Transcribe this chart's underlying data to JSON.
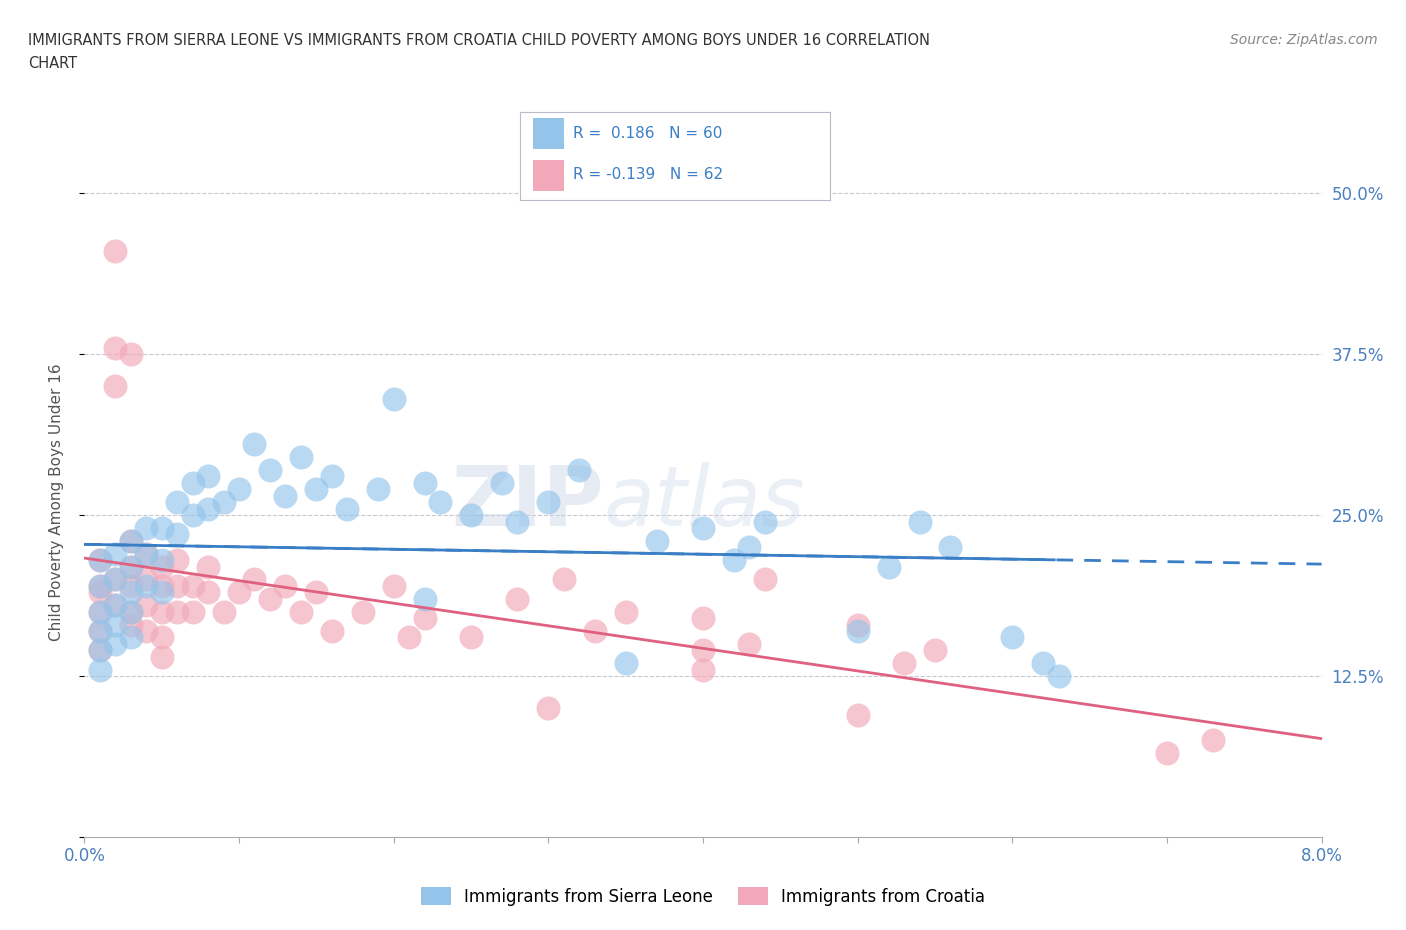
{
  "title_line1": "IMMIGRANTS FROM SIERRA LEONE VS IMMIGRANTS FROM CROATIA CHILD POVERTY AMONG BOYS UNDER 16 CORRELATION",
  "title_line2": "CHART",
  "source_text": "Source: ZipAtlas.com",
  "ylabel": "Child Poverty Among Boys Under 16",
  "xlim": [
    0.0,
    0.08
  ],
  "ylim": [
    0.0,
    0.52
  ],
  "xticks": [
    0.0,
    0.01,
    0.02,
    0.03,
    0.04,
    0.05,
    0.06,
    0.07,
    0.08
  ],
  "xticklabels_sparse": {
    "0.0": "0.0%",
    "0.08": "8.0%"
  },
  "yticks": [
    0.0,
    0.125,
    0.25,
    0.375,
    0.5
  ],
  "yticklabels": [
    "",
    "12.5%",
    "25.0%",
    "37.5%",
    "50.0%"
  ],
  "legend_R1": "R =  0.186",
  "legend_N1": "N = 60",
  "legend_R2": "R = -0.139",
  "legend_N2": "N = 62",
  "color_sierra": "#94C4EA",
  "color_croatia": "#F2A8B8",
  "trendline_color_sierra": "#3A7EC6",
  "trendline_color_croatia": "#E06080",
  "background_color": "#FFFFFF",
  "grid_color": "#C8C8D0",
  "watermark_zip": "ZIP",
  "watermark_atlas": "atlas",
  "sierra_x": [
    0.001,
    0.001,
    0.001,
    0.001,
    0.001,
    0.001,
    0.002,
    0.002,
    0.002,
    0.002,
    0.002,
    0.003,
    0.003,
    0.003,
    0.003,
    0.003,
    0.004,
    0.004,
    0.004,
    0.005,
    0.005,
    0.005,
    0.006,
    0.006,
    0.007,
    0.007,
    0.008,
    0.008,
    0.009,
    0.01,
    0.011,
    0.012,
    0.013,
    0.014,
    0.015,
    0.016,
    0.017,
    0.019,
    0.02,
    0.022,
    0.023,
    0.025,
    0.027,
    0.028,
    0.03,
    0.032,
    0.035,
    0.037,
    0.04,
    0.042,
    0.043,
    0.044,
    0.05,
    0.052,
    0.054,
    0.056,
    0.06,
    0.062,
    0.063,
    0.022
  ],
  "sierra_y": [
    0.215,
    0.195,
    0.175,
    0.16,
    0.145,
    0.13,
    0.22,
    0.2,
    0.18,
    0.165,
    0.15,
    0.23,
    0.21,
    0.19,
    0.175,
    0.155,
    0.24,
    0.22,
    0.195,
    0.24,
    0.215,
    0.19,
    0.26,
    0.235,
    0.275,
    0.25,
    0.28,
    0.255,
    0.26,
    0.27,
    0.305,
    0.285,
    0.265,
    0.295,
    0.27,
    0.28,
    0.255,
    0.27,
    0.34,
    0.275,
    0.26,
    0.25,
    0.275,
    0.245,
    0.26,
    0.285,
    0.135,
    0.23,
    0.24,
    0.215,
    0.225,
    0.245,
    0.16,
    0.21,
    0.245,
    0.225,
    0.155,
    0.135,
    0.125,
    0.185
  ],
  "croatia_x": [
    0.001,
    0.001,
    0.001,
    0.001,
    0.001,
    0.002,
    0.002,
    0.002,
    0.002,
    0.002,
    0.003,
    0.003,
    0.003,
    0.003,
    0.003,
    0.004,
    0.004,
    0.004,
    0.004,
    0.005,
    0.005,
    0.005,
    0.005,
    0.006,
    0.006,
    0.006,
    0.007,
    0.007,
    0.008,
    0.008,
    0.009,
    0.01,
    0.011,
    0.012,
    0.013,
    0.014,
    0.015,
    0.016,
    0.018,
    0.02,
    0.021,
    0.022,
    0.025,
    0.028,
    0.03,
    0.031,
    0.033,
    0.035,
    0.04,
    0.04,
    0.04,
    0.043,
    0.044,
    0.05,
    0.05,
    0.053,
    0.055,
    0.07,
    0.073,
    0.001,
    0.003,
    0.005
  ],
  "croatia_y": [
    0.215,
    0.195,
    0.175,
    0.16,
    0.145,
    0.455,
    0.38,
    0.35,
    0.2,
    0.18,
    0.375,
    0.23,
    0.21,
    0.195,
    0.175,
    0.22,
    0.2,
    0.18,
    0.16,
    0.21,
    0.195,
    0.175,
    0.155,
    0.215,
    0.195,
    0.175,
    0.195,
    0.175,
    0.21,
    0.19,
    0.175,
    0.19,
    0.2,
    0.185,
    0.195,
    0.175,
    0.19,
    0.16,
    0.175,
    0.195,
    0.155,
    0.17,
    0.155,
    0.185,
    0.1,
    0.2,
    0.16,
    0.175,
    0.145,
    0.17,
    0.13,
    0.15,
    0.2,
    0.095,
    0.165,
    0.135,
    0.145,
    0.065,
    0.075,
    0.19,
    0.165,
    0.14
  ]
}
